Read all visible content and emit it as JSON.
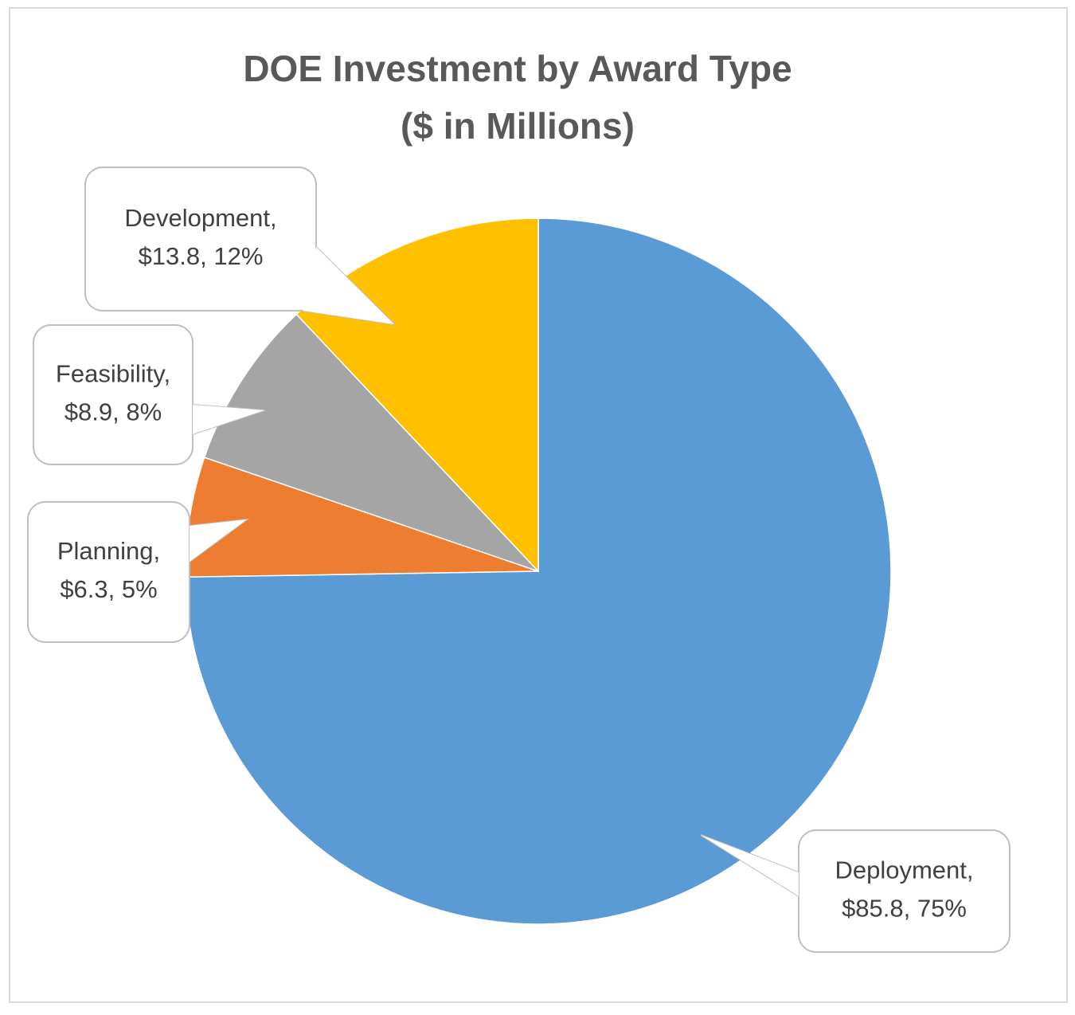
{
  "chart_data": {
    "type": "pie",
    "title": [
      "DOE Investment by Award Type",
      "($ in Millions)"
    ],
    "values": [
      85.8,
      6.3,
      8.9,
      13.8
    ],
    "value_labels": [
      [
        "Deployment,",
        "$85.8, 75%"
      ],
      [
        "Planning,",
        "$6.3, 5%"
      ],
      [
        "Feasibility,",
        "$8.9, 8%"
      ],
      [
        "Development,",
        "$13.8, 12%"
      ]
    ],
    "colors": [
      "#5b9bd5",
      "#ed7d31",
      "#a5a5a5",
      "#ffc000"
    ]
  }
}
